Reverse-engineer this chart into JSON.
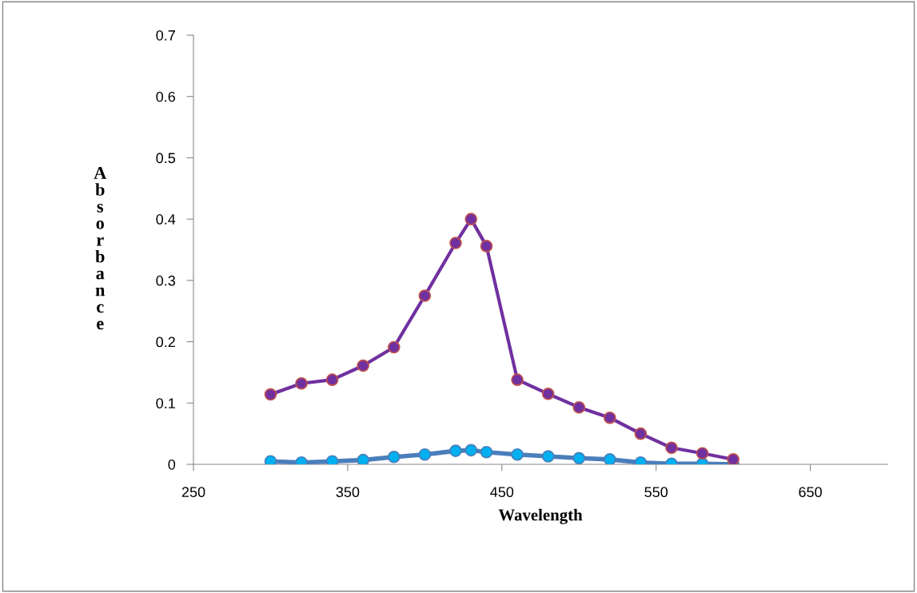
{
  "chart_data": {
    "type": "line",
    "xlabel": "Wavelength",
    "ylabel": "Absorbance",
    "xlim": [
      250,
      700
    ],
    "xticks": [
      250,
      350,
      450,
      550,
      650
    ],
    "ylim": [
      0,
      0.7
    ],
    "yticks": [
      0,
      0.1,
      0.2,
      0.3,
      0.4,
      0.5,
      0.6,
      0.7
    ],
    "grid": false,
    "legend": false,
    "marker": "circle",
    "line_style": "solid",
    "series": [
      {
        "color": "#7030a0",
        "x": [
          300,
          320,
          340,
          360,
          380,
          400,
          420,
          430,
          440,
          460,
          480,
          500,
          520,
          540,
          560,
          580,
          600
        ],
        "values": [
          0.114,
          0.132,
          0.138,
          0.161,
          0.191,
          0.275,
          0.361,
          0.4,
          0.356,
          0.138,
          0.115,
          0.093,
          0.076,
          0.05,
          0.027,
          0.018,
          0.008
        ]
      },
      {
        "color": "#00b0f0",
        "x": [
          300,
          320,
          340,
          360,
          380,
          400,
          420,
          430,
          440,
          460,
          480,
          500,
          520,
          540,
          560,
          580,
          600
        ],
        "values": [
          0.005,
          0.003,
          0.005,
          0.007,
          0.012,
          0.016,
          0.022,
          0.023,
          0.02,
          0.016,
          0.013,
          0.01,
          0.008,
          0.003,
          0.001,
          0.001,
          0.0
        ]
      }
    ]
  }
}
